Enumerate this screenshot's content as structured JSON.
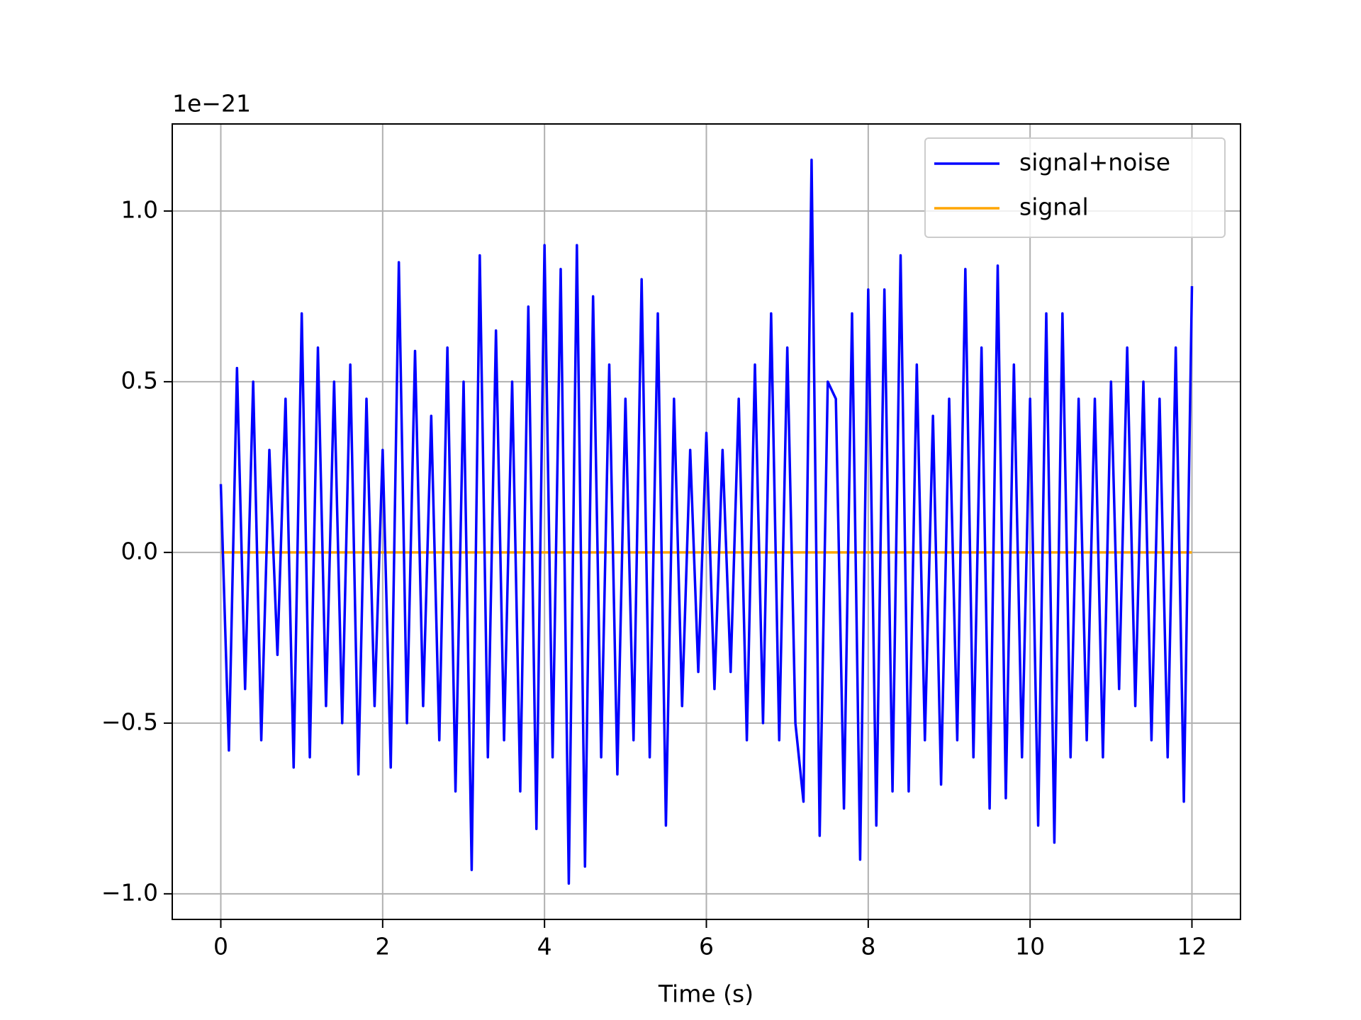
{
  "chart_data": {
    "type": "line",
    "offset_label": "1e−21",
    "x_label": "Time (s)",
    "xlim": [
      -0.6,
      12.6
    ],
    "ylim": [
      -1.075,
      1.255
    ],
    "xticks": [
      0,
      2,
      4,
      6,
      8,
      10,
      12
    ],
    "yticks": [
      {
        "value": -1.0,
        "label": "−1.0"
      },
      {
        "value": -0.5,
        "label": "−0.5"
      },
      {
        "value": 0.0,
        "label": "0.0"
      },
      0.5,
      {
        "value": 1.0,
        "label": "1.0"
      }
    ],
    "grid": true,
    "legend": "upper right",
    "series": [
      {
        "name": "signal+noise",
        "color": "#0000ff",
        "x": [
          0,
          0.1,
          0.2,
          0.3,
          0.4,
          0.5,
          0.6,
          0.7,
          0.8,
          0.9,
          1.0,
          1.1,
          1.2,
          1.3,
          1.4,
          1.5,
          1.6,
          1.7,
          1.8,
          1.9,
          2.0,
          2.1,
          2.2,
          2.3,
          2.4,
          2.5,
          2.6,
          2.7,
          2.8,
          2.9,
          3.0,
          3.1,
          3.2,
          3.3,
          3.4,
          3.5,
          3.6,
          3.7,
          3.8,
          3.9,
          4.0,
          4.1,
          4.2,
          4.3,
          4.4,
          4.5,
          4.6,
          4.7,
          4.8,
          4.9,
          5.0,
          5.1,
          5.2,
          5.3,
          5.4,
          5.5,
          5.6,
          5.7,
          5.8,
          5.9,
          6.0,
          6.1,
          6.2,
          6.3,
          6.4,
          6.5,
          6.6,
          6.7,
          6.8,
          6.9,
          7.0,
          7.1,
          7.2,
          7.3,
          7.4,
          7.5,
          7.6,
          7.7,
          7.8,
          7.9,
          8.0,
          8.1,
          8.2,
          8.3,
          8.4,
          8.5,
          8.6,
          8.7,
          8.8,
          8.9,
          9.0,
          9.1,
          9.2,
          9.3,
          9.4,
          9.5,
          9.6,
          9.7,
          9.8,
          9.9,
          10.0,
          10.1,
          10.2,
          10.3,
          10.4,
          10.5,
          10.6,
          10.7,
          10.8,
          10.9,
          11.0,
          11.1,
          11.2,
          11.3,
          11.4,
          11.5,
          11.6,
          11.7,
          11.8,
          11.9,
          12.0
        ],
        "values": [
          0.2,
          -0.58,
          0.54,
          -0.4,
          0.5,
          -0.55,
          0.3,
          -0.3,
          0.45,
          -0.63,
          0.7,
          -0.6,
          0.6,
          -0.45,
          0.5,
          -0.5,
          0.55,
          -0.65,
          0.45,
          -0.45,
          0.3,
          -0.63,
          0.85,
          -0.5,
          0.59,
          -0.45,
          0.4,
          -0.55,
          0.6,
          -0.7,
          0.5,
          -0.93,
          0.87,
          -0.6,
          0.65,
          -0.55,
          0.5,
          -0.7,
          0.72,
          -0.81,
          0.9,
          -0.6,
          0.83,
          -0.97,
          0.9,
          -0.92,
          0.75,
          -0.6,
          0.55,
          -0.65,
          0.45,
          -0.55,
          0.8,
          -0.6,
          0.7,
          -0.8,
          0.45,
          -0.45,
          0.3,
          -0.35,
          0.35,
          -0.4,
          0.3,
          -0.35,
          0.45,
          -0.55,
          0.55,
          -0.5,
          0.7,
          -0.55,
          0.6,
          -0.5,
          -0.73,
          1.15,
          -0.83,
          0.5,
          0.45,
          -0.75,
          0.7,
          -0.9,
          0.77,
          -0.8,
          0.77,
          -0.7,
          0.87,
          -0.7,
          0.55,
          -0.55,
          0.4,
          -0.68,
          0.45,
          -0.55,
          0.83,
          -0.6,
          0.6,
          -0.75,
          0.84,
          -0.72,
          0.55,
          -0.6,
          0.45,
          -0.8,
          0.7,
          -0.85,
          0.7,
          -0.6,
          0.45,
          -0.55,
          0.45,
          -0.6,
          0.5,
          -0.4,
          0.6,
          -0.45,
          0.5,
          -0.55,
          0.45,
          -0.6,
          0.6,
          -0.73,
          0.78
        ]
      },
      {
        "name": "signal",
        "color": "#ffa500",
        "x": [
          0,
          12
        ],
        "values": [
          0,
          0
        ]
      }
    ]
  }
}
